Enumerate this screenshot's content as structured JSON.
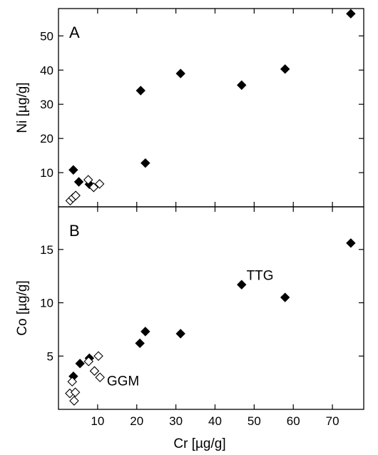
{
  "chart_data": [
    {
      "type": "scatter",
      "panel_label": "A",
      "xlabel": "Cr [µg/g]",
      "ylabel": "Ni [µg/g]",
      "xlim": [
        0,
        78
      ],
      "ylim": [
        0,
        58
      ],
      "x_ticks": [
        10,
        20,
        30,
        40,
        50,
        60,
        70
      ],
      "y_ticks": [
        10,
        20,
        30,
        40,
        50
      ],
      "series": [
        {
          "marker": "filled-diamond",
          "points": [
            {
              "x": 3.8,
              "y": 10.8
            },
            {
              "x": 5.2,
              "y": 7.3
            },
            {
              "x": 7.9,
              "y": 6.6
            },
            {
              "x": 21.0,
              "y": 34.0
            },
            {
              "x": 22.2,
              "y": 12.8
            },
            {
              "x": 31.2,
              "y": 39.0
            },
            {
              "x": 46.8,
              "y": 35.6
            },
            {
              "x": 57.9,
              "y": 40.3
            },
            {
              "x": 74.7,
              "y": 56.5
            }
          ]
        },
        {
          "marker": "open-diamond",
          "points": [
            {
              "x": 3.0,
              "y": 1.8
            },
            {
              "x": 3.7,
              "y": 2.6
            },
            {
              "x": 4.4,
              "y": 3.3
            },
            {
              "x": 7.6,
              "y": 7.9
            },
            {
              "x": 9.0,
              "y": 5.7
            },
            {
              "x": 10.5,
              "y": 6.7
            }
          ]
        }
      ]
    },
    {
      "type": "scatter",
      "panel_label": "B",
      "xlabel": "Cr [µg/g]",
      "ylabel": "Co [µg/g]",
      "xlim": [
        0,
        78
      ],
      "ylim": [
        0,
        19
      ],
      "x_ticks": [
        10,
        20,
        30,
        40,
        50,
        60,
        70
      ],
      "y_ticks": [
        5,
        10,
        15
      ],
      "annotations": [
        {
          "text": "TTG",
          "x": 51.5,
          "y": 12.6
        },
        {
          "text": "GGM",
          "x": 16.5,
          "y": 2.7
        }
      ],
      "series": [
        {
          "marker": "filled-diamond",
          "points": [
            {
              "x": 3.8,
              "y": 3.1
            },
            {
              "x": 5.5,
              "y": 4.3
            },
            {
              "x": 7.9,
              "y": 4.8
            },
            {
              "x": 20.8,
              "y": 6.2
            },
            {
              "x": 22.2,
              "y": 7.3
            },
            {
              "x": 31.2,
              "y": 7.1
            },
            {
              "x": 46.8,
              "y": 11.7
            },
            {
              "x": 57.9,
              "y": 10.5
            },
            {
              "x": 74.7,
              "y": 15.6
            }
          ]
        },
        {
          "marker": "open-diamond",
          "points": [
            {
              "x": 2.9,
              "y": 1.5
            },
            {
              "x": 3.5,
              "y": 2.6
            },
            {
              "x": 4.3,
              "y": 1.6
            },
            {
              "x": 4.0,
              "y": 0.8
            },
            {
              "x": 7.7,
              "y": 4.5
            },
            {
              "x": 9.2,
              "y": 3.6
            },
            {
              "x": 10.6,
              "y": 3.0
            },
            {
              "x": 10.2,
              "y": 5.0
            }
          ]
        }
      ]
    }
  ]
}
